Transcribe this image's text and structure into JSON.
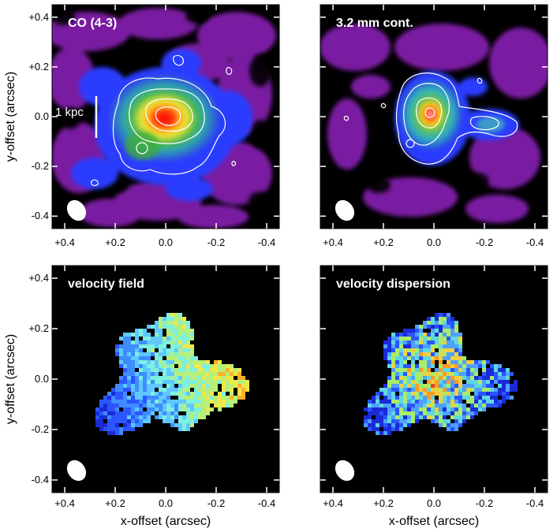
{
  "figure": {
    "panels": [
      {
        "id": "co",
        "title": "CO (4-3)",
        "type": "intensity-map"
      },
      {
        "id": "cont",
        "title": "3.2 mm cont.",
        "type": "intensity-map"
      },
      {
        "id": "vel",
        "title": "velocity field",
        "type": "velocity-map"
      },
      {
        "id": "disp",
        "title": "velocity dispersion",
        "type": "dispersion-map"
      }
    ],
    "x_axis_label": "x-offset (arcsec)",
    "y_axis_label": "y-offset (arcsec)",
    "x_ticks": [
      "+0.4",
      "+0.2",
      "0.0",
      "-0.2",
      "-0.4"
    ],
    "y_ticks": [
      "+0.4",
      "+0.2",
      "0.0",
      "-0.2",
      "-0.4"
    ],
    "scale_bar_label": "1 kpc",
    "colors": {
      "background": "#000000",
      "low": "#7a1fa2",
      "blue": "#2a3cff",
      "cyan": "#4fd3d3",
      "green": "#3fae3a",
      "yellow": "#f2e030",
      "orange": "#ff8a1e",
      "red": "#d4140e",
      "contour": "#ffffff"
    }
  }
}
